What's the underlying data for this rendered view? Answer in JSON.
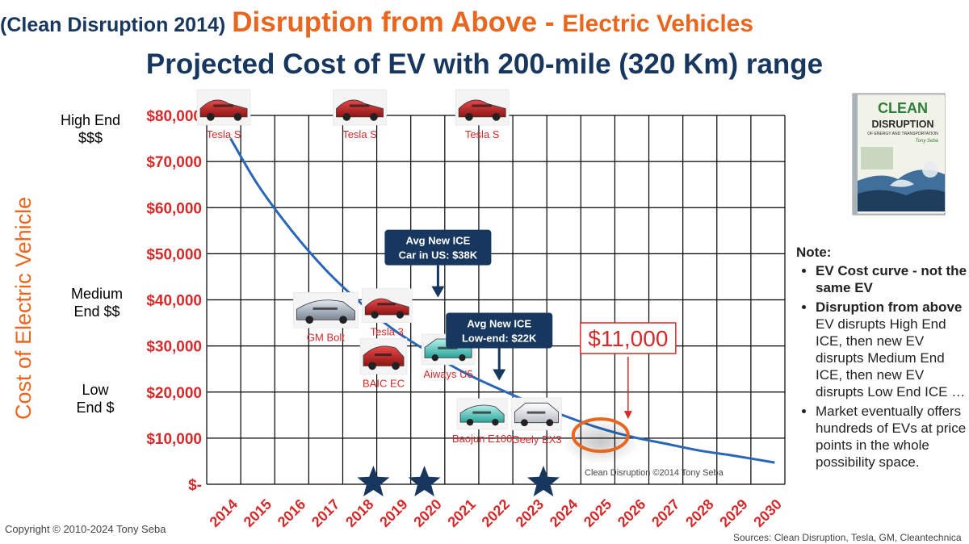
{
  "title": {
    "prefix": "(Clean Disruption 2014)",
    "main": "Disruption from Above - ",
    "sub": "Electric Vehicles",
    "line2": "Projected Cost of EV with 200-mile (320 Km) range"
  },
  "tiers": {
    "high": [
      "High End",
      "$$$"
    ],
    "medium": [
      "Medium",
      "End $$"
    ],
    "low": [
      "Low",
      "End $"
    ]
  },
  "y_axis_title": "Cost of Electric Vehicle",
  "note": {
    "title": "Note:",
    "items": [
      {
        "bold": "EV Cost curve - not the same EV",
        "text": ""
      },
      {
        "bold": "Disruption from above",
        "text": " EV disrupts High End ICE, then new EV disrupts Medium End ICE, then new EV disrupts Low End ICE …"
      },
      {
        "bold": "",
        "text": "Market eventually offers hundreds of EVs at price points in the whole possibility space."
      }
    ]
  },
  "copyright": "Copyright © 2010-2024 Tony Seba",
  "sources": "Sources: Clean Disruption, Tesla, GM, Cleantechnica",
  "watermark": "Clean Disruption ©2014 Tony Seba",
  "book": {
    "line1": "CLEAN",
    "line2": "DISRUPTION",
    "line3": "OF ENERGY AND TRANSPORTATION",
    "author": "Tony Seba"
  },
  "colors": {
    "navy": "#17375e",
    "orange": "#e8661e",
    "red": "#d42a2a",
    "curve": "#2a66b8"
  },
  "chart_data": {
    "type": "line",
    "title": "Projected Cost of EV with 200-mile (320 Km) range",
    "xlabel": "",
    "ylabel": "Cost of Electric Vehicle",
    "xlim": [
      2014,
      2030
    ],
    "ylim": [
      0,
      80000
    ],
    "x_ticks": [
      "2014",
      "2015",
      "2016",
      "2017",
      "2018",
      "2019",
      "2020",
      "2021",
      "2022",
      "2023",
      "2024",
      "2025",
      "2026",
      "2027",
      "2028",
      "2029",
      "2030"
    ],
    "y_ticks": [
      {
        "value": 0,
        "label": "$-"
      },
      {
        "value": 10000,
        "label": "$10,000"
      },
      {
        "value": 20000,
        "label": "$20,000"
      },
      {
        "value": 30000,
        "label": "$30,000"
      },
      {
        "value": 40000,
        "label": "$40,000"
      },
      {
        "value": 50000,
        "label": "$50,000"
      },
      {
        "value": 60000,
        "label": "$60,000"
      },
      {
        "value": 70000,
        "label": "$70,000"
      },
      {
        "value": 80000,
        "label": "$80,000"
      }
    ],
    "grid": true,
    "series": [
      {
        "name": "EV cost curve",
        "x": [
          2014.2,
          2015,
          2016,
          2017,
          2018,
          2019,
          2020,
          2021,
          2022,
          2023,
          2024,
          2025,
          2026,
          2027,
          2028,
          2029,
          2030.2
        ],
        "y": [
          75000,
          65000,
          55000,
          46500,
          39500,
          33500,
          28800,
          24500,
          21000,
          17800,
          14900,
          12300,
          10300,
          8800,
          7300,
          6200,
          4700
        ]
      }
    ],
    "cars": [
      {
        "label": "Tesla S",
        "x": 2014,
        "y": 80000
      },
      {
        "label": "Tesla S",
        "x": 2018,
        "y": 80000
      },
      {
        "label": "Tesla S",
        "x": 2021.6,
        "y": 80000
      },
      {
        "label": "GM Bolt",
        "x": 2017,
        "y": 36000
      },
      {
        "label": "Tesla 3",
        "x": 2018.8,
        "y": 37000
      },
      {
        "label": "BAIC EC",
        "x": 2018.7,
        "y": 26000
      },
      {
        "label": "Aiways U5",
        "x": 2020.6,
        "y": 27500
      },
      {
        "label": "Baojun E100",
        "x": 2021.6,
        "y": 13500
      },
      {
        "label": "Geely EX3",
        "x": 2023.2,
        "y": 13500
      }
    ],
    "annotations": [
      {
        "text": [
          "Avg New ICE",
          "Car in US: $38K"
        ],
        "x": 2020.3,
        "y": 40500
      },
      {
        "text": [
          "Avg New ICE",
          "Low-end: $22K"
        ],
        "x": 2022.1,
        "y": 22500
      },
      {
        "text": [
          "$11,000"
        ],
        "x": 2025.7,
        "y": 11000
      }
    ],
    "stars": [
      2018.4,
      2019.9,
      2023.4
    ]
  }
}
